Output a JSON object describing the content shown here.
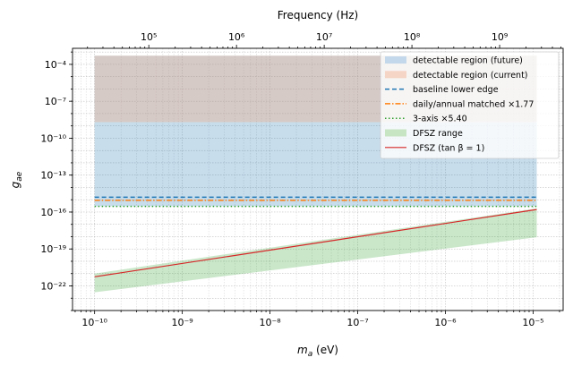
{
  "chart_data": {
    "type": "area",
    "top_axis_label": "Frequency (Hz)",
    "xlabel": "m_a (eV)",
    "ylabel": "g_ae",
    "xscale": "log",
    "yscale": "log",
    "grid": true,
    "xlim": [
      5.6e-11,
      2.2e-05
    ],
    "ylim": [
      1e-24,
      0.002
    ],
    "top_xlim": [
      13500.0,
      5300000000.0
    ],
    "x_ticks": [
      {
        "value": 1e-10,
        "label": "10⁻¹⁰"
      },
      {
        "value": 1e-09,
        "label": "10⁻⁹"
      },
      {
        "value": 1e-08,
        "label": "10⁻⁸"
      },
      {
        "value": 1e-07,
        "label": "10⁻⁷"
      },
      {
        "value": 1e-06,
        "label": "10⁻⁶"
      },
      {
        "value": 1e-05,
        "label": "10⁻⁵"
      }
    ],
    "top_ticks": [
      {
        "value": 100000.0,
        "label": "10⁵"
      },
      {
        "value": 1000000.0,
        "label": "10⁶"
      },
      {
        "value": 10000000.0,
        "label": "10⁷"
      },
      {
        "value": 100000000.0,
        "label": "10⁸"
      },
      {
        "value": 1000000000.0,
        "label": "10⁹"
      }
    ],
    "y_ticks": [
      {
        "value": 0.0001,
        "label": "10⁻⁴"
      },
      {
        "value": 1e-07,
        "label": "10⁻⁷"
      },
      {
        "value": 1e-10,
        "label": "10⁻¹⁰"
      },
      {
        "value": 1e-13,
        "label": "10⁻¹³"
      },
      {
        "value": 1e-16,
        "label": "10⁻¹⁶"
      },
      {
        "value": 1e-19,
        "label": "10⁻¹⁹"
      },
      {
        "value": 1e-22,
        "label": "10⁻²²"
      }
    ],
    "regions": [
      {
        "name": "detectable region (future)",
        "kind": "fill",
        "color": "#1f77b4",
        "opacity": 0.25,
        "x": [
          1e-10,
          1.1e-05
        ],
        "y_low": 3e-16,
        "y_high": 0.0005
      },
      {
        "name": "detectable region (current)",
        "kind": "fill",
        "color": "#f4a582",
        "opacity": 0.35,
        "x": [
          1e-10,
          1.1e-05
        ],
        "y_low": 2e-09,
        "y_high": 0.0005
      },
      {
        "name": "DFSZ range",
        "kind": "fill",
        "color": "#2ca02c",
        "opacity": 0.25,
        "x": [
          1e-10,
          1.1e-05
        ],
        "y_low_ends": [
          3e-23,
          9e-19
        ],
        "y_high_ends": [
          1e-21,
          2e-16
        ]
      }
    ],
    "series": [
      {
        "name": "baseline lower edge",
        "style": "dashed",
        "color": "#1f77b4",
        "x": [
          1e-10,
          1.1e-05
        ],
        "y": [
          1.6e-15,
          1.6e-15
        ]
      },
      {
        "name": "daily/annual matched ×1.77",
        "style": "dashdot",
        "color": "#ff7f0e",
        "x": [
          1e-10,
          1.1e-05
        ],
        "y": [
          9e-16,
          9e-16
        ]
      },
      {
        "name": "3-axis ×5.40",
        "style": "dotted",
        "color": "#2ca02c",
        "x": [
          1e-10,
          1.1e-05
        ],
        "y": [
          2.9e-16,
          2.9e-16
        ]
      },
      {
        "name": "DFSZ (tan β = 1)",
        "style": "solid",
        "color": "#d62728",
        "x": [
          1e-10,
          1.1e-05
        ],
        "y": [
          5.5e-22,
          1.6e-16
        ]
      }
    ],
    "legend": {
      "position": "top-right",
      "entries": [
        {
          "label": "detectable region (future)",
          "kind": "patch",
          "color": "#c3d8ea"
        },
        {
          "label": "detectable region (current)",
          "kind": "patch",
          "color": "#f5d5c5"
        },
        {
          "label": "baseline lower edge",
          "kind": "line",
          "style": "dashed",
          "color": "#1f77b4"
        },
        {
          "label": "daily/annual matched ×1.77",
          "kind": "line",
          "style": "dashdot",
          "color": "#ff7f0e"
        },
        {
          "label": "3-axis ×5.40",
          "kind": "line",
          "style": "dotted",
          "color": "#2ca02c"
        },
        {
          "label": "DFSZ range",
          "kind": "patch",
          "color": "#c7e5c3"
        },
        {
          "label": "DFSZ (tan β = 1)",
          "kind": "line",
          "style": "solid",
          "color": "#d62728"
        }
      ]
    }
  }
}
